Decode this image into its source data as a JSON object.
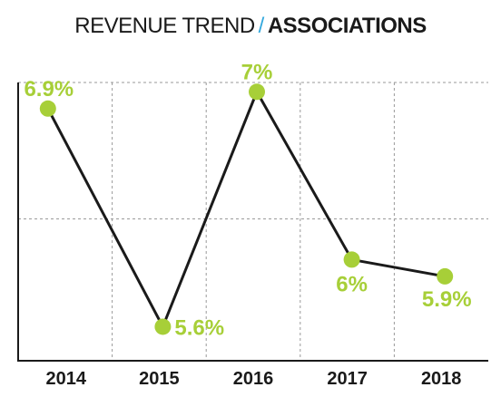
{
  "title": {
    "main": "REVENUE TREND",
    "separator": "/",
    "sub": "ASSOCIATIONS"
  },
  "colors": {
    "line": "#1a1a1a",
    "marker": "#a7cf38",
    "label": "#a7cf38",
    "separator": "#33a8dd",
    "grid": "#9a9a9a",
    "axis": "#1a1a1a"
  },
  "chart_data": {
    "type": "line",
    "title": "REVENUE TREND / ASSOCIATIONS",
    "categories": [
      "2014",
      "2015",
      "2016",
      "2017",
      "2018"
    ],
    "series": [
      {
        "values": [
          6.9,
          5.6,
          7.0,
          6.0,
          5.9
        ],
        "data_labels": [
          "6.9%",
          "5.6%",
          "7%",
          "6%",
          "5.9%"
        ]
      }
    ],
    "ylim": [
      5.5,
      7.05
    ],
    "grid": "dashed",
    "legend": "none"
  }
}
